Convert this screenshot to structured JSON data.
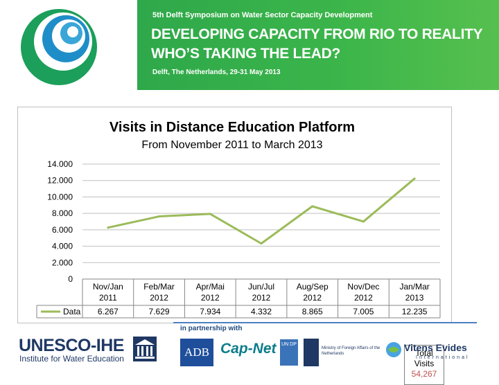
{
  "header": {
    "subtitle": "5th Delft Symposium on Water Sector Capacity Development",
    "title_line1": "DEVELOPING CAPACITY FROM RIO TO REALITY",
    "title_line2": "WHO’S TAKING THE LEAD?",
    "location": "Delft, The Netherlands, 29-31 May 2013",
    "band_color": "#3bb54a"
  },
  "chart_data": {
    "type": "line",
    "title": "Visits in Distance Education Platform",
    "subtitle": "From November 2011 to March 2013",
    "categories": [
      [
        "Nov/Jan",
        "2011"
      ],
      [
        "Feb/Mar",
        "2012"
      ],
      [
        "Apr/Mai",
        "2012"
      ],
      [
        "Jun/Jul",
        "2012"
      ],
      [
        "Aug/Sep",
        "2012"
      ],
      [
        "Nov/Dec",
        "2012"
      ],
      [
        "Jan/Mar",
        "2013"
      ]
    ],
    "series": [
      {
        "name": "Data",
        "values": [
          6267,
          7629,
          7934,
          4332,
          8865,
          7005,
          12235
        ],
        "labels": [
          "6.267",
          "7.629",
          "7.934",
          "4.332",
          "8.865",
          "7.005",
          "12.235"
        ],
        "color": "#9bbb59"
      }
    ],
    "ylim": [
      0,
      14000
    ],
    "yticks": [
      0,
      2000,
      4000,
      6000,
      8000,
      10000,
      12000,
      14000
    ],
    "ytick_labels": [
      "0",
      "2.000",
      "4.000",
      "6.000",
      "8.000",
      "10.000",
      "12.000",
      "14.000"
    ],
    "grid": true,
    "data_table": true,
    "annotation": {
      "label_line1": "Total",
      "label_line2": "Visits",
      "value": "54,267",
      "value_color": "#c0504d"
    }
  },
  "partners": {
    "label": "in partnership with",
    "unesco_title": "UNESCO-IHE",
    "unesco_subtitle": "Institute for Water Education",
    "adb": "ADB",
    "capnet": "Cap-Net",
    "undp": "UN DP",
    "mofa_line1": "Ministry of Foreign Affairs of the",
    "mofa_line2": "Netherlands",
    "vitens_name": "Vitens Evides",
    "vitens_sub": "International"
  }
}
